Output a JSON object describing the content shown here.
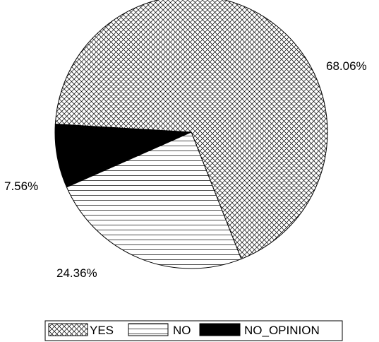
{
  "chart_data": {
    "type": "pie",
    "title": "",
    "slices": [
      {
        "label": "YES",
        "value": 68.06,
        "value_label": "68.06%",
        "fill": "crosshatch"
      },
      {
        "label": "NO",
        "value": 24.36,
        "value_label": "24.36%",
        "fill": "horizontal-lines"
      },
      {
        "label": "NO_OPINION",
        "value": 7.56,
        "value_label": "7.56%",
        "fill": "solid-black"
      }
    ],
    "legend": {
      "placement": "bottom",
      "entries": [
        "YES",
        "NO",
        "NO_OPINION"
      ]
    },
    "colors": {
      "stroke": "#000000",
      "background": "#ffffff",
      "solid": "#000000"
    }
  }
}
